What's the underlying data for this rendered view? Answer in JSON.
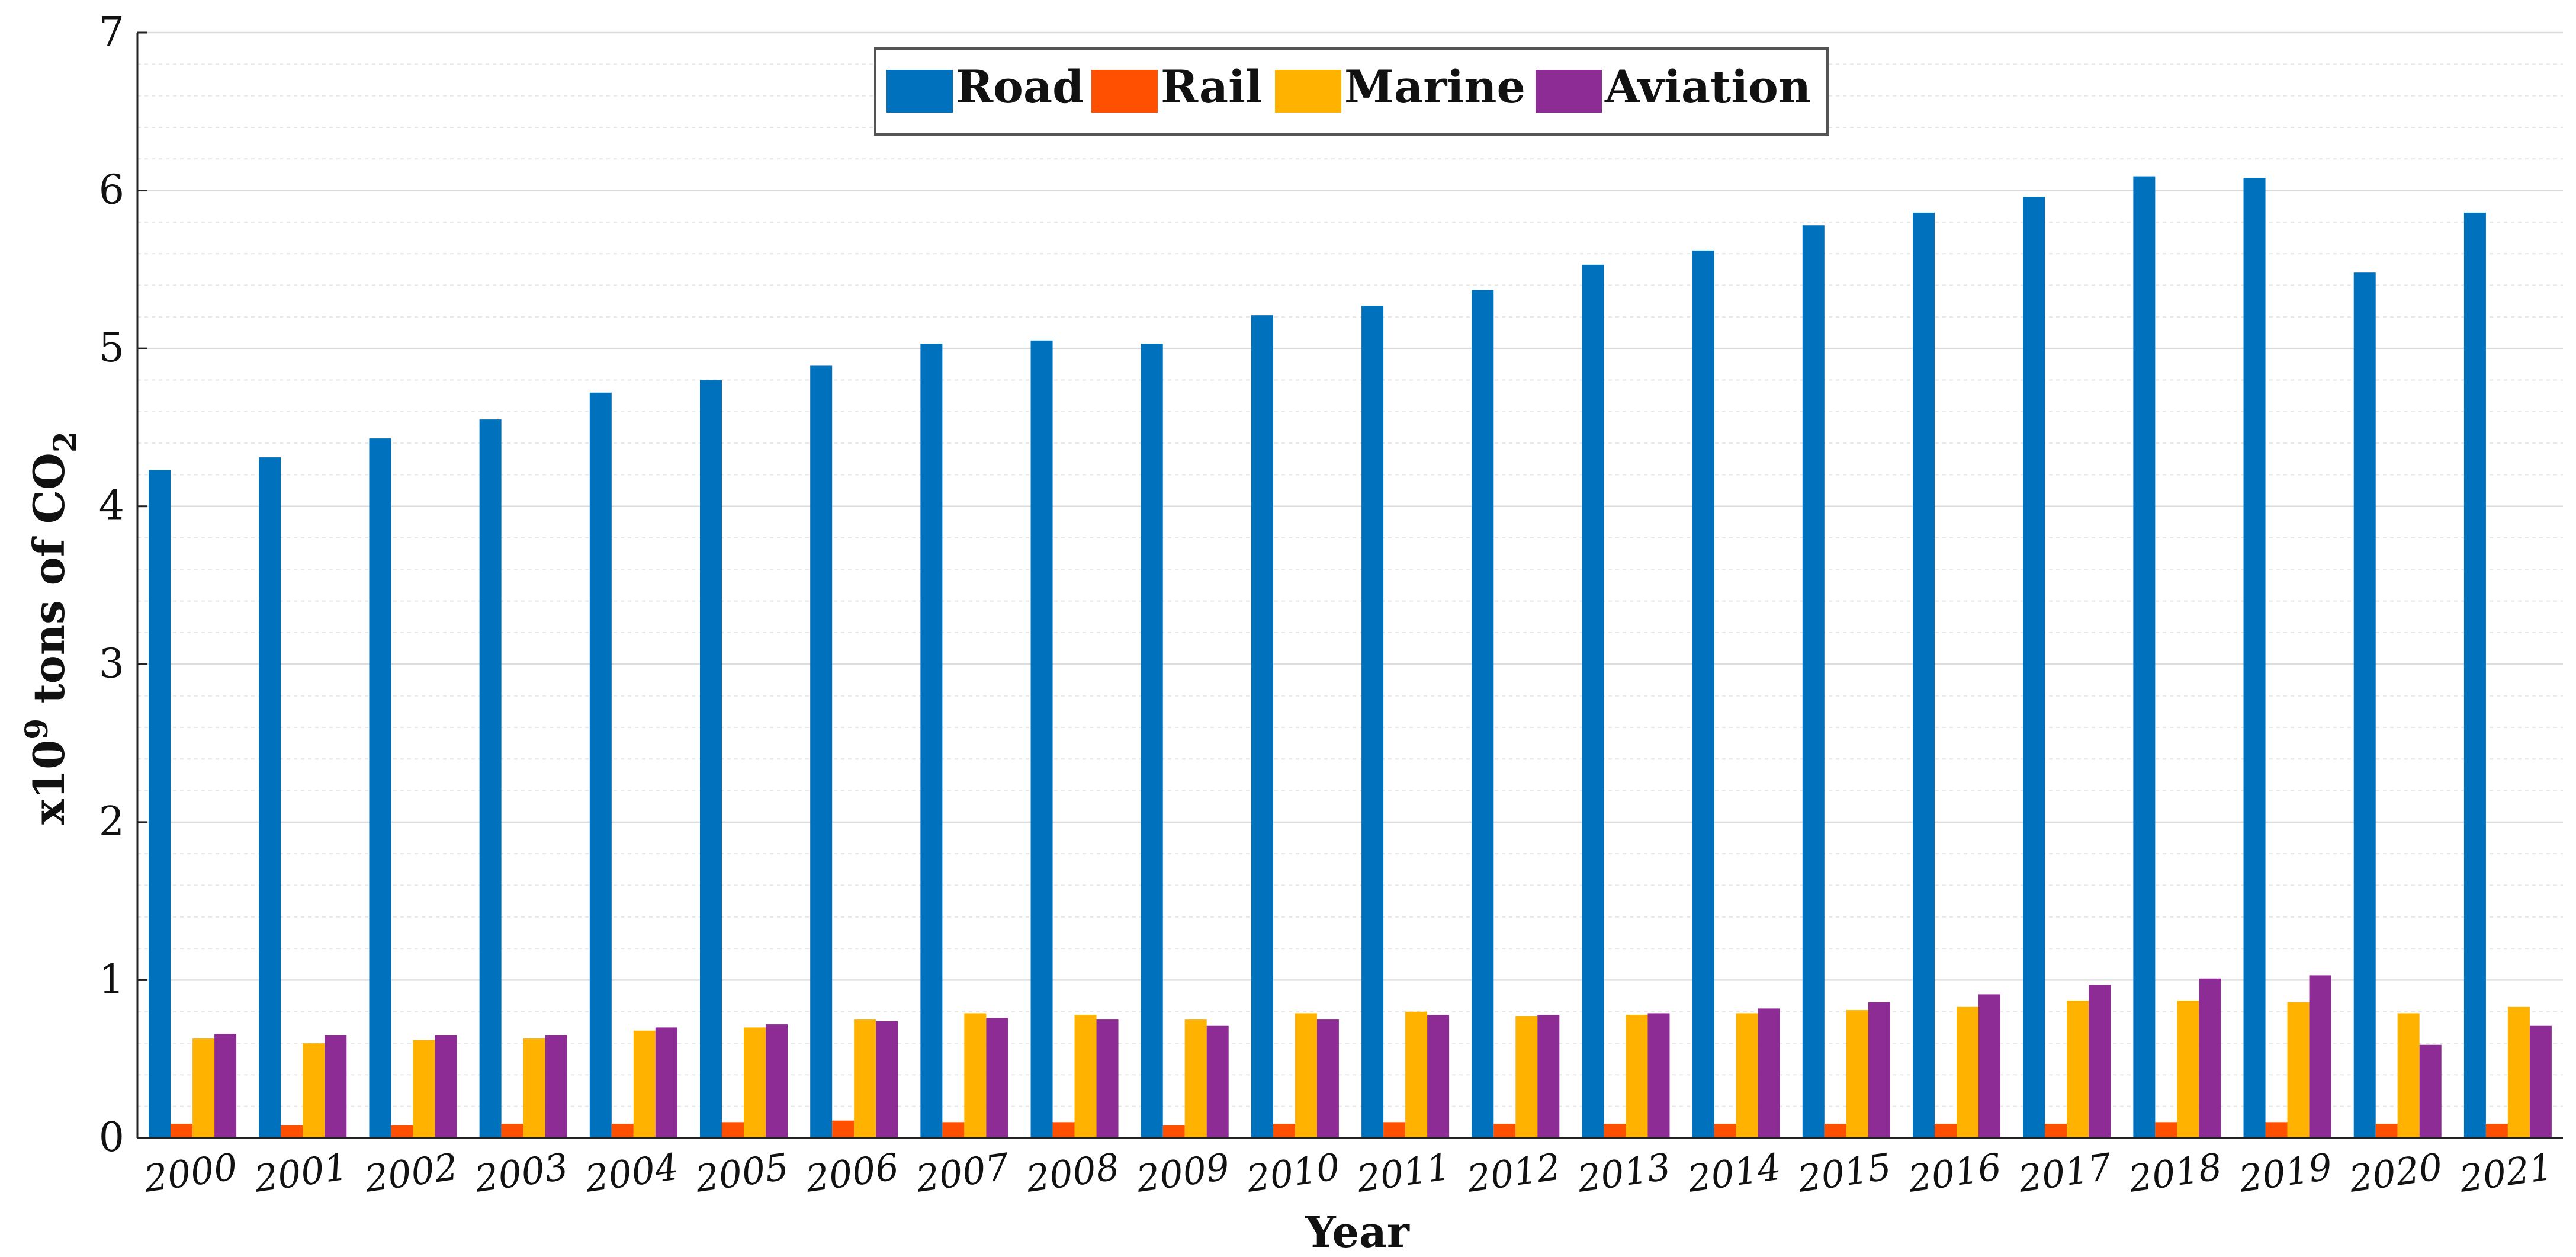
{
  "chart_data": {
    "type": "bar",
    "title": "",
    "xlabel": "Year",
    "ylabel": {
      "prefix": "x10",
      "exponent": "9",
      "middle": " tons of CO",
      "subscript": "2"
    },
    "ylim": [
      0,
      7
    ],
    "ytick_step": 1,
    "yticks": [
      "0",
      "1",
      "2",
      "3",
      "4",
      "5",
      "6",
      "7"
    ],
    "minor_grid_step": 0.2,
    "grid": true,
    "legend_position": "top-center",
    "categories": [
      "2000",
      "2001",
      "2002",
      "2003",
      "2004",
      "2005",
      "2006",
      "2007",
      "2008",
      "2009",
      "2010",
      "2011",
      "2012",
      "2013",
      "2014",
      "2015",
      "2016",
      "2017",
      "2018",
      "2019",
      "2020",
      "2021"
    ],
    "series": [
      {
        "name": "Road",
        "color": "#0072BD",
        "values": [
          4.23,
          4.31,
          4.43,
          4.55,
          4.72,
          4.8,
          4.89,
          5.03,
          5.05,
          5.03,
          5.21,
          5.27,
          5.37,
          5.53,
          5.62,
          5.78,
          5.86,
          5.96,
          6.09,
          6.08,
          5.48,
          5.86
        ]
      },
      {
        "name": "Rail",
        "color": "#FF4F00",
        "values": [
          0.09,
          0.08,
          0.08,
          0.09,
          0.09,
          0.1,
          0.11,
          0.1,
          0.1,
          0.08,
          0.09,
          0.1,
          0.09,
          0.09,
          0.09,
          0.09,
          0.09,
          0.09,
          0.1,
          0.1,
          0.09,
          0.09
        ]
      },
      {
        "name": "Marine",
        "color": "#FFB300",
        "values": [
          0.63,
          0.6,
          0.62,
          0.63,
          0.68,
          0.7,
          0.75,
          0.79,
          0.78,
          0.75,
          0.79,
          0.8,
          0.77,
          0.78,
          0.79,
          0.81,
          0.83,
          0.87,
          0.87,
          0.86,
          0.79,
          0.83
        ]
      },
      {
        "name": "Aviation",
        "color": "#8E2C95",
        "values": [
          0.66,
          0.65,
          0.65,
          0.65,
          0.7,
          0.72,
          0.74,
          0.76,
          0.75,
          0.71,
          0.75,
          0.78,
          0.78,
          0.79,
          0.82,
          0.86,
          0.91,
          0.97,
          1.01,
          1.03,
          0.59,
          0.71
        ]
      }
    ]
  }
}
